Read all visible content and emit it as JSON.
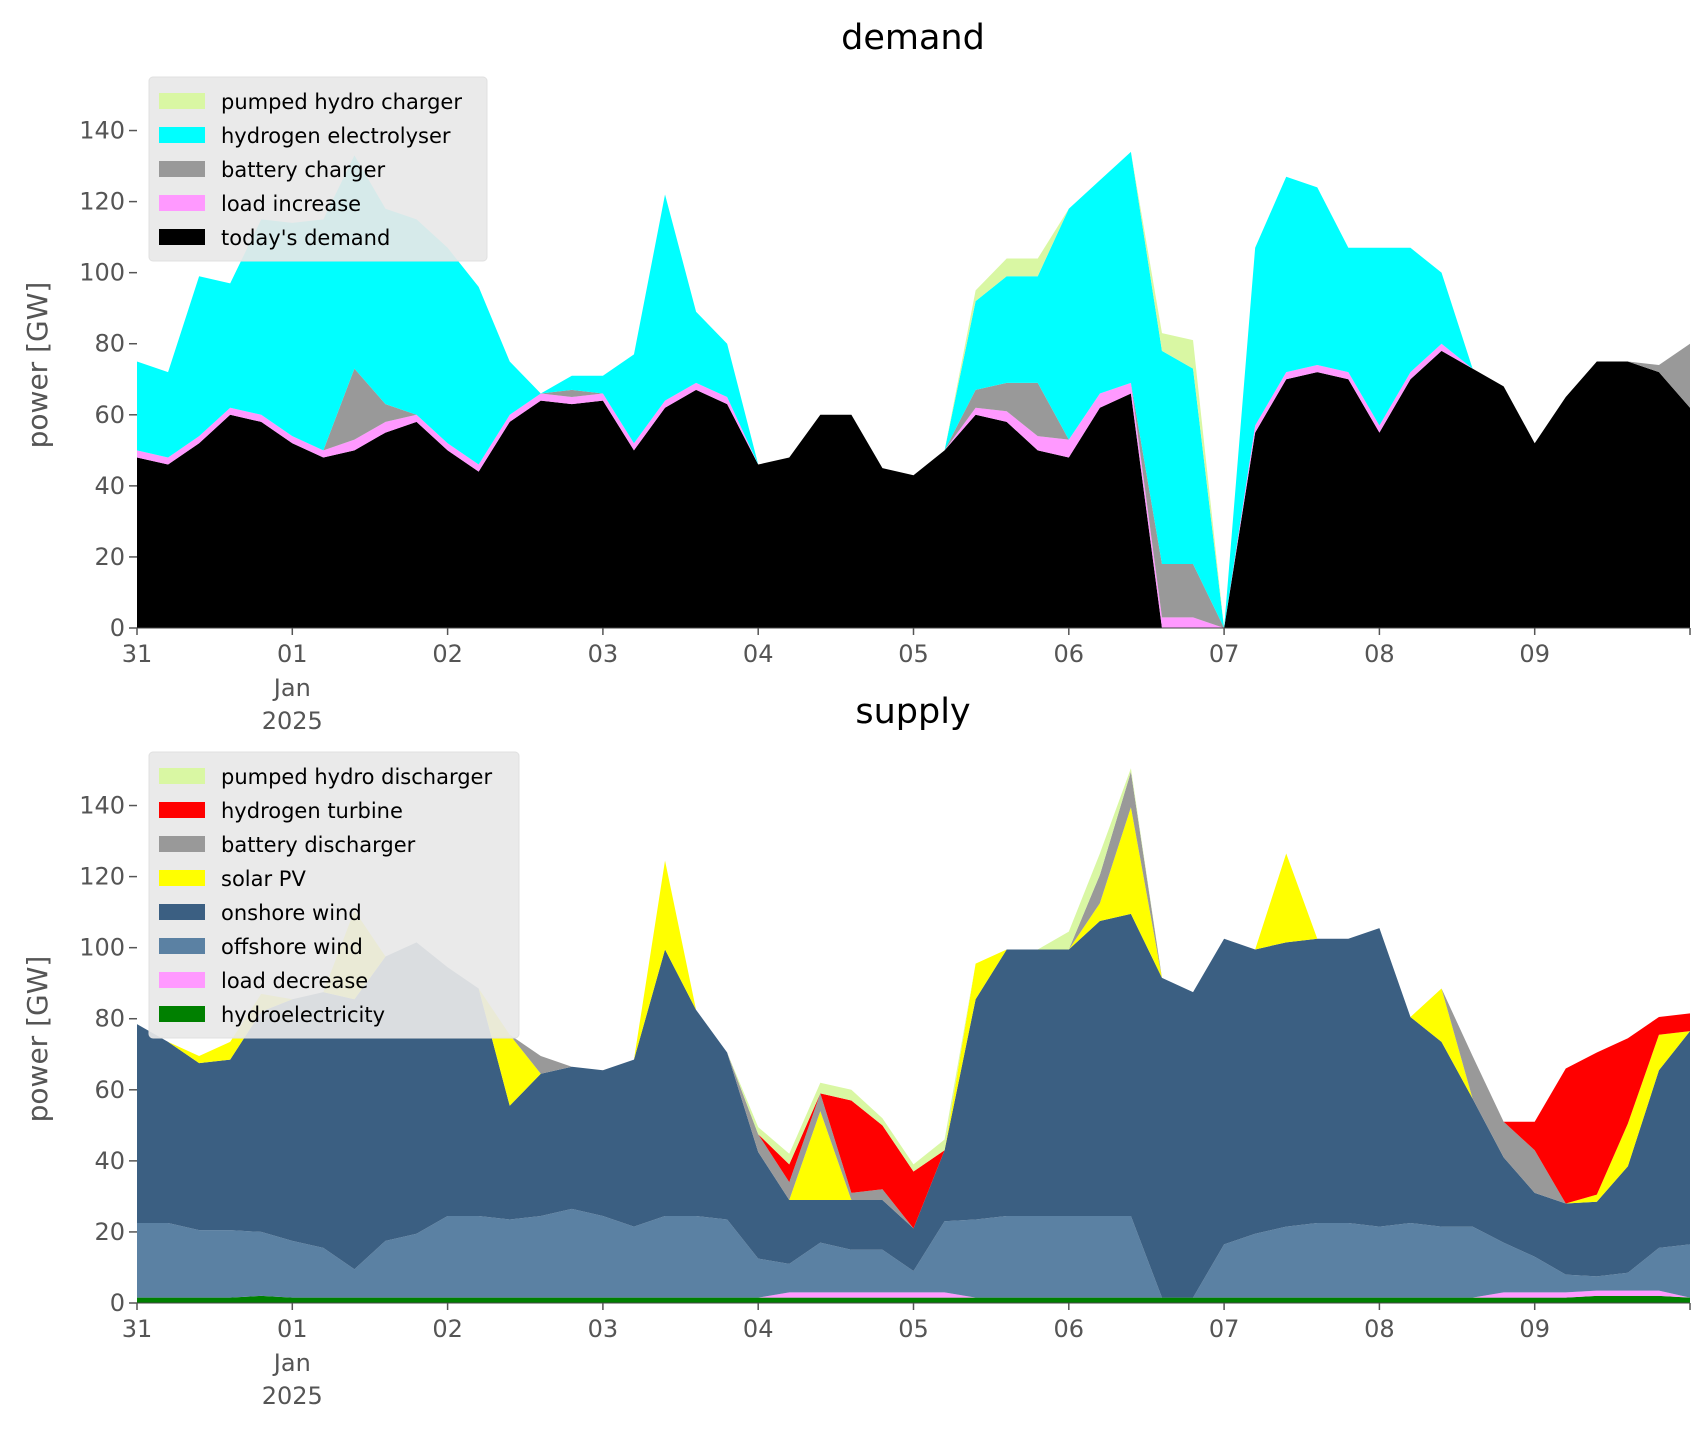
{
  "chart_data": [
    {
      "type": "area",
      "stacked": true,
      "title": "demand",
      "ylabel": "power [GW]",
      "ylim": [
        0,
        150
      ],
      "yticks": [
        "0",
        "20",
        "40",
        "60",
        "80",
        "100",
        "120",
        "140"
      ],
      "xlim": [
        0,
        10
      ],
      "x_tick_labels": [
        "31",
        "01",
        "02",
        "03",
        "04",
        "05",
        "06",
        "07",
        "08",
        "09"
      ],
      "x_sub_label": [
        "Jan",
        "2025"
      ],
      "legend_position": "top-left",
      "x": [
        0,
        0.2,
        0.4,
        0.6,
        0.8,
        1,
        1.2,
        1.4,
        1.6,
        1.8,
        2,
        2.2,
        2.4,
        2.6,
        2.8,
        3,
        3.2,
        3.4,
        3.6,
        3.8,
        4,
        4.2,
        4.4,
        4.6,
        4.8,
        5,
        5.2,
        5.4,
        5.6,
        5.8,
        6,
        6.2,
        6.4,
        6.6,
        6.8,
        7,
        7.2,
        7.4,
        7.6,
        7.8,
        8,
        8.2,
        8.4,
        8.6,
        8.8,
        9,
        9.2,
        9.4,
        9.6,
        9.8,
        10
      ],
      "series": [
        {
          "name": "today's demand",
          "color": "#000000",
          "values": [
            48,
            46,
            52,
            60,
            58,
            52,
            48,
            50,
            55,
            58,
            50,
            44,
            58,
            64,
            63,
            64,
            50,
            62,
            67,
            63,
            46,
            48,
            60,
            60,
            45,
            43,
            50,
            60,
            58,
            50,
            48,
            62,
            66,
            0,
            0,
            0,
            55,
            70,
            72,
            70,
            55,
            70,
            78,
            73,
            68,
            52,
            65,
            75,
            75,
            72,
            62
          ]
        },
        {
          "name": "load increase",
          "color": "#ff99ff",
          "values": [
            2,
            2,
            2,
            2,
            2,
            2,
            2,
            3,
            3,
            2,
            2,
            2,
            2,
            2,
            2,
            2,
            2,
            2,
            2,
            2,
            0,
            0,
            0,
            0,
            0,
            0,
            0,
            2,
            3,
            4,
            5,
            4,
            3,
            3,
            3,
            0,
            2,
            2,
            2,
            2,
            2,
            2,
            2,
            0,
            0,
            0,
            0,
            0,
            0,
            0,
            0
          ]
        },
        {
          "name": "battery charger",
          "color": "#999999",
          "values": [
            0,
            0,
            0,
            0,
            0,
            0,
            0,
            20,
            5,
            0,
            0,
            0,
            0,
            0,
            2,
            0,
            0,
            0,
            0,
            0,
            0,
            0,
            0,
            0,
            0,
            0,
            0,
            5,
            8,
            15,
            0,
            0,
            0,
            15,
            15,
            0,
            0,
            0,
            0,
            0,
            0,
            0,
            0,
            0,
            0,
            0,
            0,
            0,
            0,
            2,
            18
          ]
        },
        {
          "name": "hydrogen electrolyser",
          "color": "#00ffff",
          "values": [
            25,
            24,
            45,
            35,
            55,
            60,
            65,
            60,
            55,
            55,
            55,
            50,
            15,
            0,
            4,
            5,
            25,
            58,
            20,
            15,
            0,
            0,
            0,
            0,
            0,
            0,
            0,
            25,
            30,
            30,
            65,
            60,
            65,
            60,
            55,
            0,
            50,
            55,
            50,
            35,
            50,
            35,
            20,
            0,
            0,
            0,
            0,
            0,
            0,
            0,
            0
          ]
        },
        {
          "name": "pumped hydro charger",
          "color": "#d9f7a3",
          "values": [
            0,
            0,
            0,
            0,
            0,
            0,
            0,
            0,
            0,
            0,
            0,
            0,
            0,
            0,
            0,
            0,
            0,
            0,
            0,
            0,
            0,
            0,
            0,
            0,
            0,
            0,
            0,
            3,
            5,
            5,
            0,
            0,
            0,
            5,
            8,
            0,
            0,
            0,
            0,
            0,
            0,
            0,
            0,
            0,
            0,
            0,
            0,
            0,
            0,
            0,
            0
          ]
        }
      ]
    },
    {
      "type": "area",
      "stacked": true,
      "title": "supply",
      "ylabel": "power [GW]",
      "ylim": [
        0,
        150
      ],
      "yticks": [
        "0",
        "20",
        "40",
        "60",
        "80",
        "100",
        "120",
        "140"
      ],
      "xlim": [
        0,
        10
      ],
      "x_tick_labels": [
        "31",
        "01",
        "02",
        "03",
        "04",
        "05",
        "06",
        "07",
        "08",
        "09"
      ],
      "x_sub_label": [
        "Jan",
        "2025"
      ],
      "legend_position": "top-left",
      "x": [
        0,
        0.2,
        0.4,
        0.6,
        0.8,
        1,
        1.2,
        1.4,
        1.6,
        1.8,
        2,
        2.2,
        2.4,
        2.6,
        2.8,
        3,
        3.2,
        3.4,
        3.6,
        3.8,
        4,
        4.2,
        4.4,
        4.6,
        4.8,
        5,
        5.2,
        5.4,
        5.6,
        5.8,
        6,
        6.2,
        6.4,
        6.6,
        6.8,
        7,
        7.2,
        7.4,
        7.6,
        7.8,
        8,
        8.2,
        8.4,
        8.6,
        8.8,
        9,
        9.2,
        9.4,
        9.6,
        9.8,
        10
      ],
      "series": [
        {
          "name": "hydroelectricity",
          "color": "#008000",
          "values": [
            1.5,
            1.5,
            1.5,
            1.5,
            2,
            1.5,
            1.5,
            1.5,
            1.5,
            1.5,
            1.5,
            1.5,
            1.5,
            1.5,
            1.5,
            1.5,
            1.5,
            1.5,
            1.5,
            1.5,
            1.5,
            1.5,
            1.5,
            1.5,
            1.5,
            1.5,
            1.5,
            1.5,
            1.5,
            1.5,
            1.5,
            1.5,
            1.5,
            1.5,
            1.5,
            1.5,
            1.5,
            1.5,
            1.5,
            1.5,
            1.5,
            1.5,
            1.5,
            1.5,
            1.5,
            1.5,
            1.5,
            2,
            2,
            2,
            1.5
          ]
        },
        {
          "name": "load decrease",
          "color": "#ff99ff",
          "values": [
            0,
            0,
            0,
            0,
            0,
            0,
            0,
            0,
            0,
            0,
            0,
            0,
            0,
            0,
            0,
            0,
            0,
            0,
            0,
            0,
            0,
            1.5,
            1.5,
            1.5,
            1.5,
            1.5,
            1.5,
            0,
            0,
            0,
            0,
            0,
            0,
            0,
            0,
            0,
            0,
            0,
            0,
            0,
            0,
            0,
            0,
            0,
            1.5,
            1.5,
            1.5,
            1.5,
            1.5,
            1.5,
            0
          ]
        },
        {
          "name": "offshore wind",
          "color": "#5b81a3",
          "values": [
            21,
            21,
            19,
            19,
            18,
            16,
            14,
            8,
            16,
            18,
            23,
            23,
            22,
            23,
            25,
            23,
            20,
            23,
            23,
            22,
            11,
            8,
            14,
            12,
            12,
            6,
            20,
            22,
            23,
            23,
            23,
            23,
            23,
            0,
            0,
            15,
            18,
            20,
            21,
            21,
            20,
            21,
            20,
            20,
            14,
            10,
            5,
            4,
            5,
            12,
            15
          ]
        },
        {
          "name": "onshore wind",
          "color": "#3b5f82",
          "values": [
            56,
            51,
            47,
            48,
            62,
            68,
            72,
            76,
            80,
            82,
            70,
            64,
            32,
            40,
            40,
            41,
            47,
            75,
            58,
            47,
            30,
            18,
            12,
            14,
            14,
            12,
            20,
            62,
            75,
            75,
            75,
            83,
            85,
            90,
            86,
            86,
            80,
            80,
            80,
            80,
            84,
            58,
            52,
            36,
            24,
            18,
            20,
            21,
            30,
            50,
            60
          ]
        },
        {
          "name": "solar PV",
          "color": "#ffff00",
          "values": [
            0,
            0,
            2,
            5,
            5,
            0,
            0,
            25,
            0,
            0,
            0,
            0,
            20,
            0,
            0,
            0,
            0,
            25,
            0,
            0,
            0,
            0,
            25,
            0,
            0,
            0,
            0,
            10,
            0,
            0,
            0,
            5,
            30,
            0,
            0,
            0,
            0,
            25,
            0,
            0,
            0,
            0,
            15,
            0,
            0,
            0,
            0,
            2,
            12,
            10,
            0
          ]
        },
        {
          "name": "battery discharger",
          "color": "#999999",
          "values": [
            0,
            0,
            0,
            0,
            0,
            0,
            0,
            0,
            0,
            0,
            0,
            0,
            0,
            5,
            0,
            0,
            0,
            0,
            0,
            0,
            5,
            5,
            5,
            2,
            3,
            0,
            0,
            0,
            0,
            0,
            0,
            8,
            10,
            0,
            0,
            0,
            0,
            0,
            0,
            0,
            0,
            0,
            0,
            12,
            10,
            12,
            0,
            0,
            0,
            0,
            0
          ]
        },
        {
          "name": "hydrogen turbine",
          "color": "#ff0000",
          "values": [
            0,
            0,
            0,
            0,
            0,
            0,
            0,
            0,
            0,
            0,
            0,
            0,
            0,
            0,
            0,
            0,
            0,
            0,
            0,
            0,
            0,
            5,
            0,
            26,
            18,
            16,
            0,
            0,
            0,
            0,
            0,
            0,
            0,
            0,
            0,
            0,
            0,
            0,
            0,
            0,
            0,
            0,
            0,
            0,
            0,
            8,
            38,
            40,
            24,
            5,
            5
          ]
        },
        {
          "name": "pumped hydro discharger",
          "color": "#d9f7a3",
          "values": [
            0,
            0,
            0,
            0,
            0,
            0,
            0,
            0,
            0,
            0,
            0,
            0,
            0,
            0,
            0,
            0,
            0,
            0,
            0,
            0,
            2,
            3,
            3,
            3,
            2,
            2,
            3,
            0,
            0,
            0,
            5,
            6,
            1,
            0,
            0,
            0,
            0,
            0,
            0,
            0,
            0,
            0,
            0,
            0,
            0,
            0,
            0,
            0,
            0,
            0,
            0
          ]
        }
      ]
    }
  ]
}
